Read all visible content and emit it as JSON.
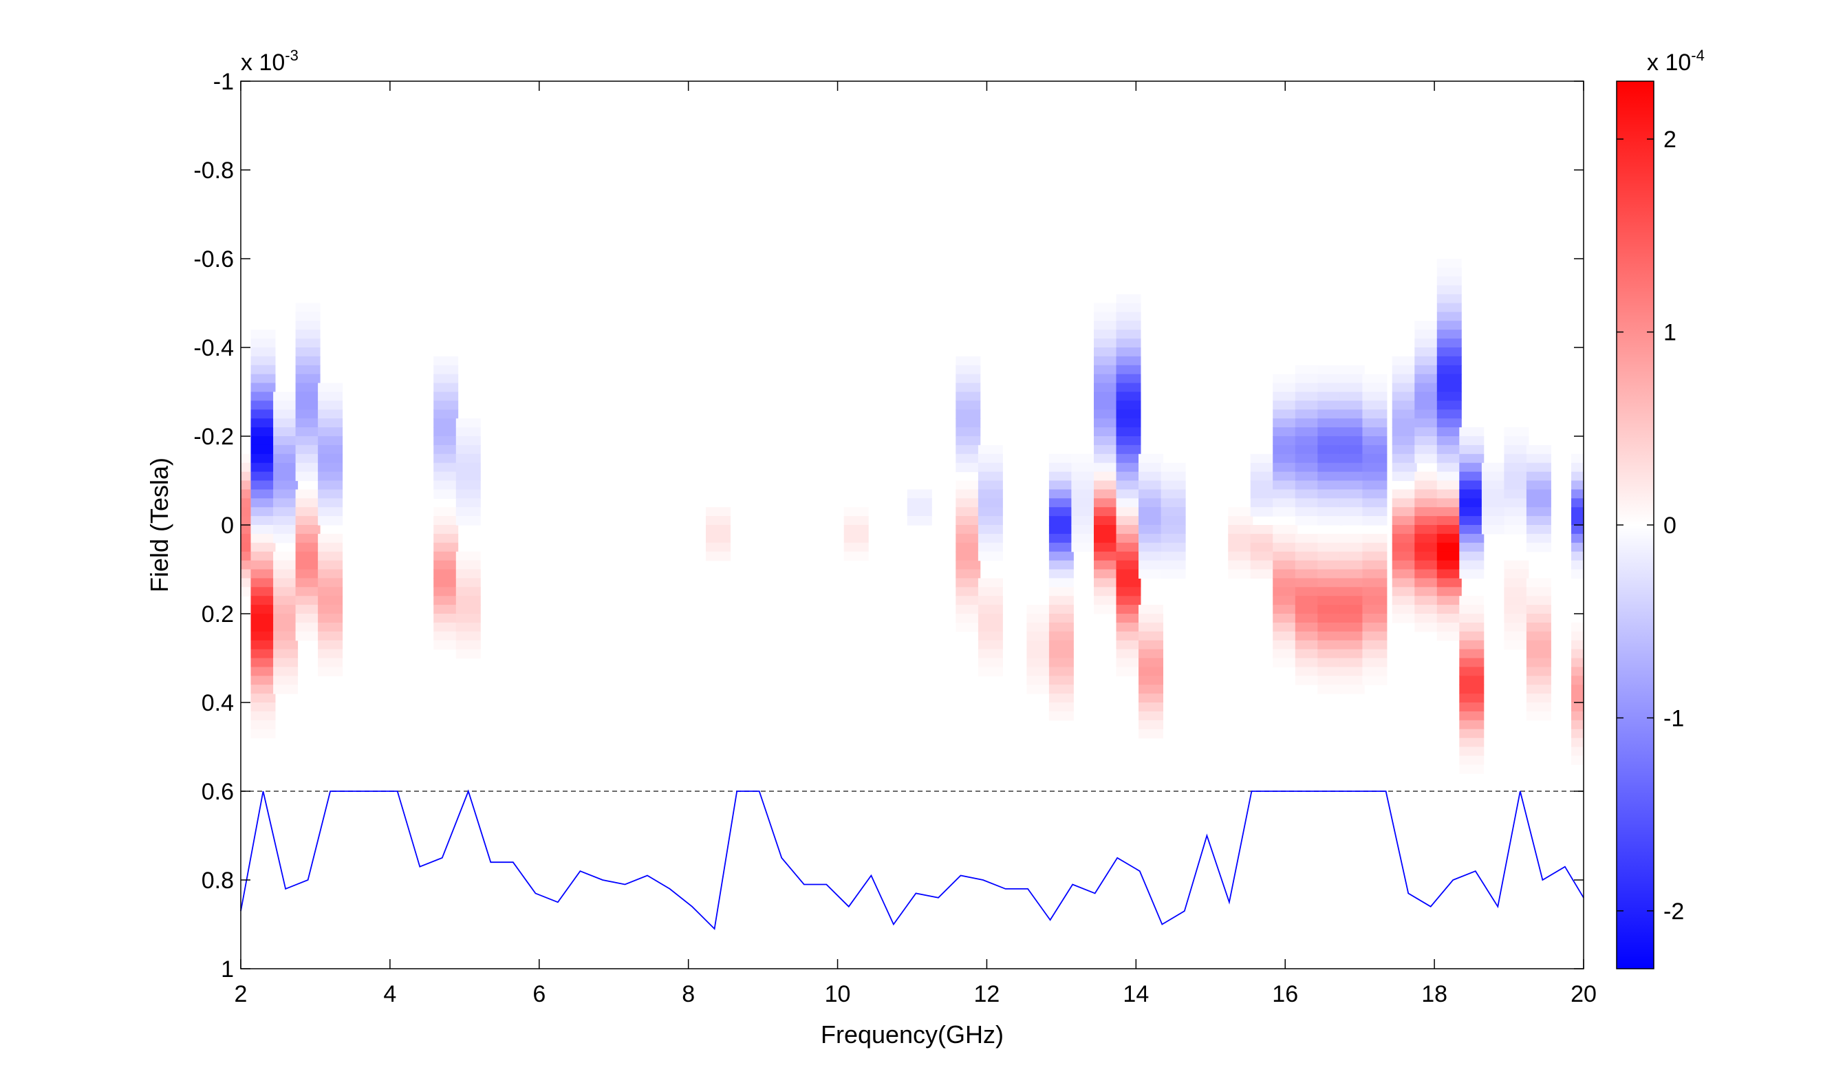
{
  "chart_data": {
    "type": "heatmap",
    "xlabel": "Frequency(GHz)",
    "ylabel": "Field (Tesla)",
    "xlim": [
      2,
      20
    ],
    "ylim": [
      -1,
      1
    ],
    "y_reversed": true,
    "y_multiplier": {
      "base": "x 10",
      "exponent": "-3"
    },
    "x_ticks": [
      {
        "v": 2,
        "label": "2"
      },
      {
        "v": 4,
        "label": "4"
      },
      {
        "v": 6,
        "label": "6"
      },
      {
        "v": 8,
        "label": "8"
      },
      {
        "v": 10,
        "label": "10"
      },
      {
        "v": 12,
        "label": "12"
      },
      {
        "v": 14,
        "label": "14"
      },
      {
        "v": 16,
        "label": "16"
      },
      {
        "v": 18,
        "label": "18"
      },
      {
        "v": 20,
        "label": "20"
      }
    ],
    "y_ticks": [
      {
        "v": -1,
        "label": "-1"
      },
      {
        "v": -0.8,
        "label": "-0.8"
      },
      {
        "v": -0.6,
        "label": "-0.6"
      },
      {
        "v": -0.4,
        "label": "-0.4"
      },
      {
        "v": -0.2,
        "label": "-0.2"
      },
      {
        "v": 0,
        "label": "0"
      },
      {
        "v": 0.2,
        "label": "0.2"
      },
      {
        "v": 0.4,
        "label": "0.4"
      },
      {
        "v": 0.6,
        "label": "0.6"
      },
      {
        "v": 0.8,
        "label": "0.8"
      },
      {
        "v": 1,
        "label": "1"
      }
    ],
    "colorbar": {
      "min": -2.3,
      "max": 2.3,
      "multiplier": {
        "base": "x 10",
        "exponent": "-4"
      },
      "colors": {
        "negative": "#0000ff",
        "zero": "#ffffff",
        "positive": "#ff0000"
      },
      "ticks": [
        {
          "v": -2,
          "label": "-2"
        },
        {
          "v": -1,
          "label": "-1"
        },
        {
          "v": 0,
          "label": "0"
        },
        {
          "v": 1,
          "label": "1"
        },
        {
          "v": 2,
          "label": "2"
        }
      ]
    },
    "heatmap_columns": [
      {
        "f": 2.0,
        "blobs": [
          {
            "c": -0.05,
            "w": 0.06,
            "a": 1.0
          },
          {
            "c": 0.05,
            "w": 0.06,
            "a": 1.2
          }
        ]
      },
      {
        "f": 2.3,
        "blobs": [
          {
            "c": -0.18,
            "w": 0.13,
            "a": -2.2
          },
          {
            "c": 0.22,
            "w": 0.13,
            "a": 2.1
          }
        ]
      },
      {
        "f": 2.6,
        "blobs": [
          {
            "c": -0.12,
            "w": 0.1,
            "a": -0.9
          },
          {
            "c": 0.22,
            "w": 0.1,
            "a": 0.7
          }
        ]
      },
      {
        "f": 2.9,
        "blobs": [
          {
            "c": -0.28,
            "w": 0.12,
            "a": -0.9
          },
          {
            "c": 0.08,
            "w": 0.1,
            "a": 1.1
          }
        ]
      },
      {
        "f": 3.2,
        "blobs": [
          {
            "c": -0.15,
            "w": 0.1,
            "a": -0.8
          },
          {
            "c": 0.17,
            "w": 0.1,
            "a": 0.8
          }
        ]
      },
      {
        "f": 4.75,
        "blobs": [
          {
            "c": -0.22,
            "w": 0.1,
            "a": -0.7
          },
          {
            "c": 0.12,
            "w": 0.09,
            "a": 1.0
          }
        ]
      },
      {
        "f": 5.05,
        "blobs": [
          {
            "c": -0.12,
            "w": 0.09,
            "a": -0.3
          },
          {
            "c": 0.18,
            "w": 0.08,
            "a": 0.4
          }
        ]
      },
      {
        "f": 8.4,
        "blobs": [
          {
            "c": 0.02,
            "w": 0.05,
            "a": 0.25
          }
        ]
      },
      {
        "f": 10.25,
        "blobs": [
          {
            "c": 0.02,
            "w": 0.04,
            "a": 0.22
          }
        ]
      },
      {
        "f": 11.1,
        "blobs": [
          {
            "c": -0.04,
            "w": 0.04,
            "a": -0.18
          }
        ]
      },
      {
        "f": 11.75,
        "blobs": [
          {
            "c": -0.24,
            "w": 0.09,
            "a": -0.6
          },
          {
            "c": 0.06,
            "w": 0.1,
            "a": 0.8
          }
        ]
      },
      {
        "f": 12.05,
        "blobs": [
          {
            "c": -0.05,
            "w": 0.08,
            "a": -0.5
          },
          {
            "c": 0.22,
            "w": 0.08,
            "a": 0.3
          }
        ]
      },
      {
        "f": 12.7,
        "blobs": [
          {
            "c": 0.28,
            "w": 0.08,
            "a": 0.2
          }
        ]
      },
      {
        "f": 13.0,
        "blobs": [
          {
            "c": 0.0,
            "w": 0.08,
            "a": -1.8
          },
          {
            "c": 0.28,
            "w": 0.1,
            "a": 0.7
          }
        ]
      },
      {
        "f": 13.3,
        "blobs": [
          {
            "c": -0.05,
            "w": 0.08,
            "a": -0.2
          }
        ]
      },
      {
        "f": 13.6,
        "blobs": [
          {
            "c": -0.28,
            "w": 0.12,
            "a": -1.0
          },
          {
            "c": 0.02,
            "w": 0.09,
            "a": 2.0
          }
        ]
      },
      {
        "f": 13.9,
        "blobs": [
          {
            "c": -0.25,
            "w": 0.14,
            "a": -1.9
          },
          {
            "c": 0.12,
            "w": 0.11,
            "a": 1.9
          }
        ]
      },
      {
        "f": 14.2,
        "blobs": [
          {
            "c": -0.02,
            "w": 0.08,
            "a": -0.7
          },
          {
            "c": 0.33,
            "w": 0.09,
            "a": 0.9
          }
        ]
      },
      {
        "f": 14.5,
        "blobs": [
          {
            "c": -0.01,
            "w": 0.08,
            "a": -0.5
          }
        ]
      },
      {
        "f": 15.4,
        "blobs": [
          {
            "c": 0.04,
            "w": 0.05,
            "a": 0.3
          }
        ]
      },
      {
        "f": 15.7,
        "blobs": [
          {
            "c": -0.08,
            "w": 0.06,
            "a": -0.3
          },
          {
            "c": 0.05,
            "w": 0.05,
            "a": 0.4
          }
        ]
      },
      {
        "f": 16.0,
        "blobs": [
          {
            "c": -0.17,
            "w": 0.09,
            "a": -1.0
          },
          {
            "c": 0.15,
            "w": 0.09,
            "a": 1.0
          }
        ]
      },
      {
        "f": 16.3,
        "blobs": [
          {
            "c": -0.17,
            "w": 0.1,
            "a": -1.1
          },
          {
            "c": 0.18,
            "w": 0.1,
            "a": 1.2
          }
        ]
      },
      {
        "f": 16.6,
        "blobs": [
          {
            "c": -0.17,
            "w": 0.1,
            "a": -1.3
          },
          {
            "c": 0.19,
            "w": 0.1,
            "a": 1.3
          }
        ]
      },
      {
        "f": 16.9,
        "blobs": [
          {
            "c": -0.17,
            "w": 0.1,
            "a": -1.3
          },
          {
            "c": 0.19,
            "w": 0.1,
            "a": 1.3
          }
        ]
      },
      {
        "f": 17.2,
        "blobs": [
          {
            "c": -0.15,
            "w": 0.1,
            "a": -1.1
          },
          {
            "c": 0.17,
            "w": 0.1,
            "a": 1.1
          }
        ]
      },
      {
        "f": 17.6,
        "blobs": [
          {
            "c": -0.22,
            "w": 0.1,
            "a": -0.7
          },
          {
            "c": 0.05,
            "w": 0.09,
            "a": 1.4
          }
        ]
      },
      {
        "f": 17.9,
        "blobs": [
          {
            "c": -0.28,
            "w": 0.1,
            "a": -0.9
          },
          {
            "c": 0.05,
            "w": 0.1,
            "a": 1.9
          }
        ]
      },
      {
        "f": 18.2,
        "blobs": [
          {
            "c": -0.32,
            "w": 0.14,
            "a": -1.8
          },
          {
            "c": 0.06,
            "w": 0.1,
            "a": 2.3
          }
        ]
      },
      {
        "f": 18.5,
        "blobs": [
          {
            "c": -0.05,
            "w": 0.09,
            "a": -2.0
          },
          {
            "c": 0.36,
            "w": 0.1,
            "a": 1.7
          }
        ]
      },
      {
        "f": 18.8,
        "blobs": [
          {
            "c": -0.06,
            "w": 0.07,
            "a": -0.2
          }
        ]
      },
      {
        "f": 19.1,
        "blobs": [
          {
            "c": -0.1,
            "w": 0.08,
            "a": -0.3
          },
          {
            "c": 0.17,
            "w": 0.08,
            "a": 0.2
          }
        ]
      },
      {
        "f": 19.4,
        "blobs": [
          {
            "c": -0.06,
            "w": 0.07,
            "a": -0.8
          },
          {
            "c": 0.28,
            "w": 0.09,
            "a": 0.7
          }
        ]
      },
      {
        "f": 20.0,
        "blobs": [
          {
            "c": -0.02,
            "w": 0.07,
            "a": -1.7
          },
          {
            "c": 0.38,
            "w": 0.09,
            "a": 0.9
          }
        ]
      }
    ],
    "dashed_line": {
      "y": 0.6,
      "color": "#555555"
    },
    "series": [
      {
        "color": "#0000ff",
        "x": [
          2.0,
          2.3,
          2.6,
          2.9,
          3.2,
          3.5,
          3.8,
          4.1,
          4.4,
          4.7,
          5.05,
          5.35,
          5.65,
          5.95,
          6.25,
          6.55,
          6.85,
          7.15,
          7.45,
          7.75,
          8.05,
          8.35,
          8.65,
          8.95,
          9.25,
          9.55,
          9.85,
          10.15,
          10.45,
          10.75,
          11.05,
          11.35,
          11.65,
          11.95,
          12.25,
          12.55,
          12.85,
          13.15,
          13.45,
          13.75,
          14.05,
          14.35,
          14.65,
          14.95,
          15.25,
          15.55,
          15.85,
          16.15,
          16.45,
          16.75,
          17.05,
          17.35,
          17.65,
          17.95,
          18.25,
          18.55,
          18.85,
          19.15,
          19.45,
          19.75,
          20.0
        ],
        "y": [
          0.87,
          0.6,
          0.82,
          0.8,
          0.6,
          0.6,
          0.6,
          0.6,
          0.77,
          0.75,
          0.6,
          0.76,
          0.76,
          0.83,
          0.85,
          0.78,
          0.8,
          0.81,
          0.79,
          0.82,
          0.86,
          0.91,
          0.6,
          0.6,
          0.75,
          0.81,
          0.81,
          0.86,
          0.79,
          0.9,
          0.83,
          0.84,
          0.79,
          0.8,
          0.82,
          0.82,
          0.89,
          0.81,
          0.83,
          0.75,
          0.78,
          0.9,
          0.87,
          0.7,
          0.85,
          0.6,
          0.6,
          0.6,
          0.6,
          0.6,
          0.6,
          0.6,
          0.83,
          0.86,
          0.8,
          0.78,
          0.86,
          0.6,
          0.8,
          0.77,
          0.84
        ]
      }
    ]
  }
}
